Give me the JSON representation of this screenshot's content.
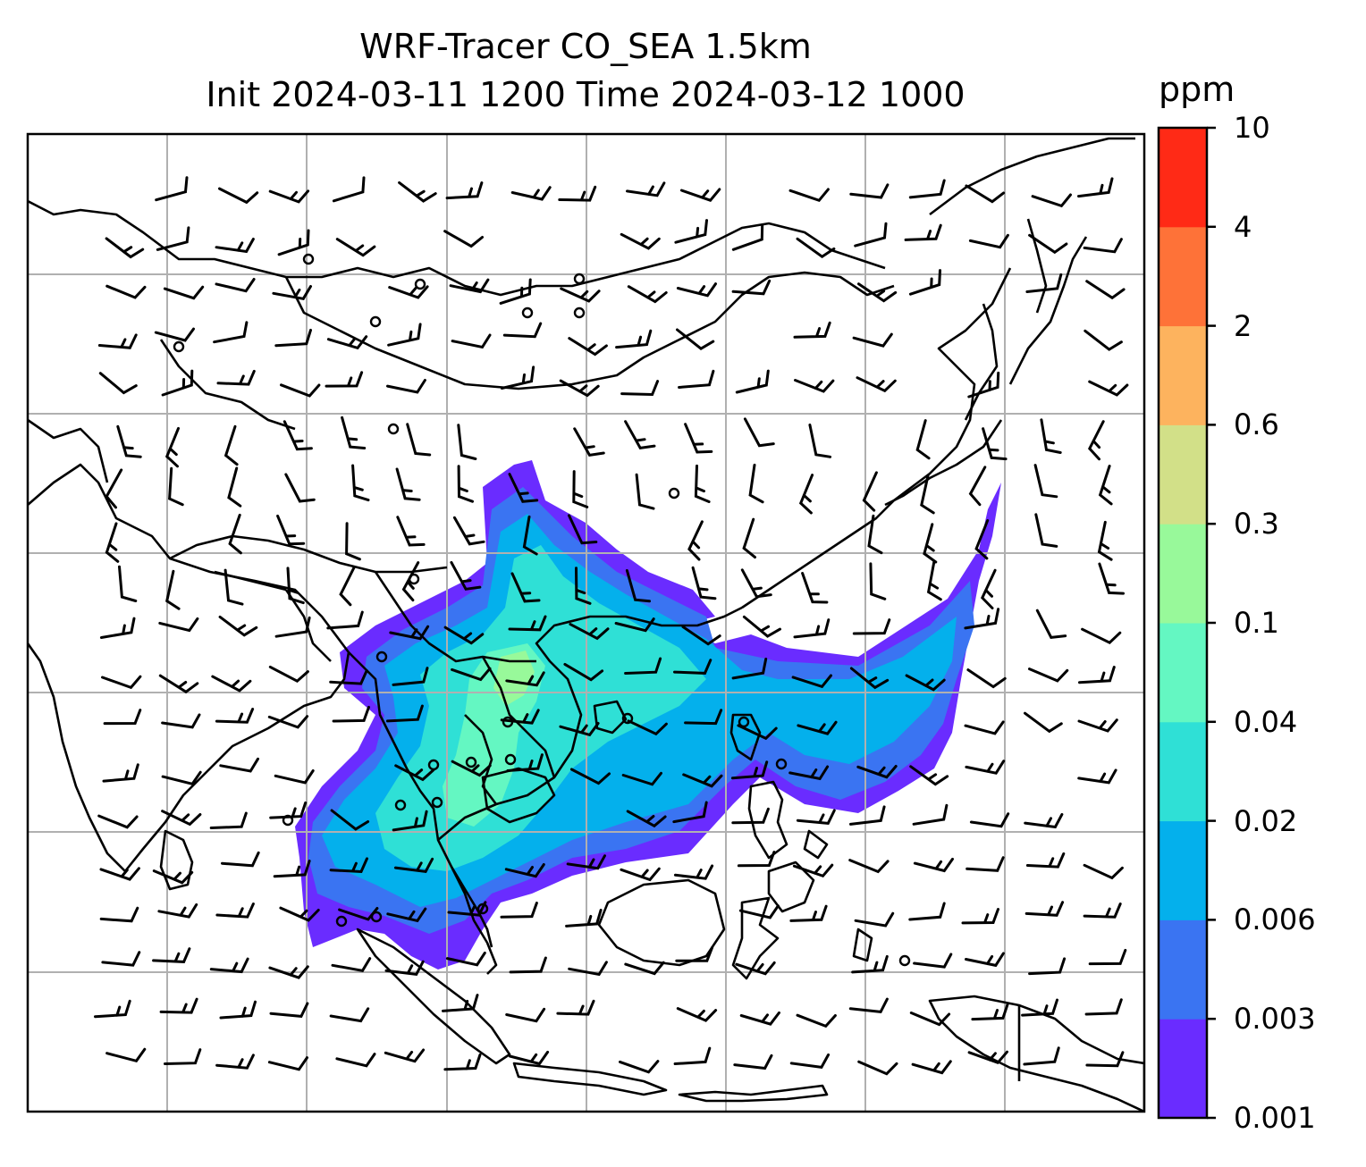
{
  "title": {
    "line1": "WRF-Tracer CO_SEA 1.5km",
    "line2": "Init 2024-03-11 1200 Time 2024-03-12 1000"
  },
  "colorbar": {
    "unit": "ppm",
    "levels": [
      "0.001",
      "0.003",
      "0.006",
      "0.02",
      "0.04",
      "0.1",
      "0.3",
      "0.6",
      "2",
      "4",
      "10"
    ],
    "colors": [
      "#6a2cff",
      "#3a74f2",
      "#04b0ec",
      "#2fe0d6",
      "#64f7c2",
      "#98f99a",
      "#d2e088",
      "#fdb35e",
      "#fe7238",
      "#ff2a16"
    ]
  },
  "map": {
    "grid": "on",
    "features": [
      "coastlines",
      "country-borders",
      "wind-barbs",
      "calm-wind-circles",
      "tracer-concentration-field"
    ]
  }
}
